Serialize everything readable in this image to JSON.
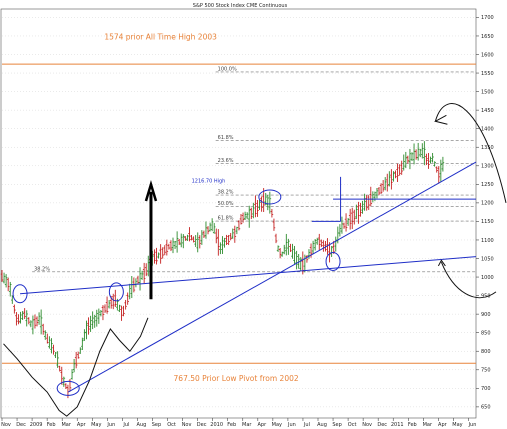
{
  "chart_data": {
    "type": "candlestick",
    "title": "S&P 500 Stock Index CME Continuous",
    "y_ticks": [
      "1700",
      "1650",
      "1600",
      "1550",
      "1500",
      "1450",
      "1400",
      "1350",
      "1300",
      "1250",
      "1200",
      "1150",
      "1100",
      "1050",
      "1000",
      "950",
      "900",
      "850",
      "800",
      "750",
      "700",
      "650"
    ],
    "x_ticks": [
      "Nov",
      "Dec",
      "2009",
      "Feb",
      "Mar",
      "Apr",
      "May",
      "Jun",
      "Jul",
      "Aug",
      "Sep",
      "Oct",
      "Nov",
      "Dec",
      "2010",
      "Feb",
      "Mar",
      "Apr",
      "May",
      "Jun",
      "Jul",
      "Aug",
      "Sep",
      "Oct",
      "Nov",
      "Dec",
      "2011",
      "Feb",
      "Mar",
      "Apr",
      "May",
      "Jun"
    ],
    "ylim": [
      620,
      1720
    ],
    "x_range": [
      0,
      31.5
    ],
    "annotations": {
      "ath": "1574 prior All Time High 2003",
      "low_pivot": "767.50 Prior Low Pivot from 2002",
      "high_1216": "1216.70 High",
      "fib_100": "100.0%",
      "fib_618_top": "61.8%",
      "fib_236": "23.6%",
      "fib_382_mid": "38.2%",
      "fib_50": "50.0%",
      "fib_618_mid": "61.8%",
      "fib_382_left": "38.2%"
    },
    "levels": {
      "ath": 1574,
      "low_pivot": 767.5,
      "fib_100": 1553,
      "fib_618_top": 1368,
      "fib_236": 1306,
      "fib_382_mid": 1221,
      "fib_50": 1190,
      "fib_618_mid": 1151,
      "fib_382_left": 1014
    },
    "price_path": [
      [
        0.0,
        1000
      ],
      [
        0.5,
        980
      ],
      [
        1.0,
        880
      ],
      [
        1.5,
        900
      ],
      [
        2.0,
        870
      ],
      [
        2.5,
        890
      ],
      [
        3.0,
        830
      ],
      [
        3.5,
        800
      ],
      [
        4.0,
        730
      ],
      [
        4.4,
        690
      ],
      [
        4.8,
        760
      ],
      [
        5.2,
        800
      ],
      [
        5.6,
        860
      ],
      [
        6.0,
        880
      ],
      [
        6.5,
        900
      ],
      [
        7.0,
        920
      ],
      [
        7.5,
        940
      ],
      [
        8.0,
        900
      ],
      [
        8.5,
        960
      ],
      [
        9.0,
        990
      ],
      [
        9.5,
        1010
      ],
      [
        10.0,
        1050
      ],
      [
        10.5,
        1060
      ],
      [
        11.0,
        1080
      ],
      [
        11.5,
        1090
      ],
      [
        12.0,
        1100
      ],
      [
        12.5,
        1110
      ],
      [
        13.0,
        1090
      ],
      [
        13.5,
        1120
      ],
      [
        14.0,
        1140
      ],
      [
        14.5,
        1080
      ],
      [
        15.0,
        1100
      ],
      [
        15.5,
        1120
      ],
      [
        16.0,
        1160
      ],
      [
        16.5,
        1170
      ],
      [
        17.0,
        1190
      ],
      [
        17.5,
        1210
      ],
      [
        17.8,
        1200
      ],
      [
        18.0,
        1160
      ],
      [
        18.3,
        1080
      ],
      [
        18.6,
        1060
      ],
      [
        19.0,
        1090
      ],
      [
        19.5,
        1050
      ],
      [
        20.0,
        1030
      ],
      [
        20.5,
        1070
      ],
      [
        21.0,
        1100
      ],
      [
        21.5,
        1080
      ],
      [
        22.0,
        1070
      ],
      [
        22.5,
        1130
      ],
      [
        23.0,
        1150
      ],
      [
        23.5,
        1170
      ],
      [
        24.0,
        1190
      ],
      [
        24.5,
        1210
      ],
      [
        25.0,
        1230
      ],
      [
        25.5,
        1250
      ],
      [
        26.0,
        1270
      ],
      [
        26.5,
        1290
      ],
      [
        27.0,
        1320
      ],
      [
        27.5,
        1330
      ],
      [
        28.0,
        1340
      ],
      [
        28.3,
        1310
      ],
      [
        28.6,
        1320
      ],
      [
        29.0,
        1280
      ],
      [
        29.3,
        1300
      ]
    ],
    "trendlines": [
      {
        "from": [
          1.2,
          955
        ],
        "to": [
          31.5,
          1055
        ]
      },
      {
        "from": [
          4.4,
          690
        ],
        "to": [
          31.5,
          1310
        ]
      }
    ],
    "extra_hline": {
      "from": 22.0,
      "to": 31.5,
      "value": 1210
    },
    "markers": [
      {
        "x": 1.2,
        "y": 955
      },
      {
        "x": 4.4,
        "y": 700
      },
      {
        "x": 7.6,
        "y": 960
      },
      {
        "x": 17.8,
        "y": 1216
      },
      {
        "x": 22.0,
        "y": 1042
      }
    ]
  }
}
